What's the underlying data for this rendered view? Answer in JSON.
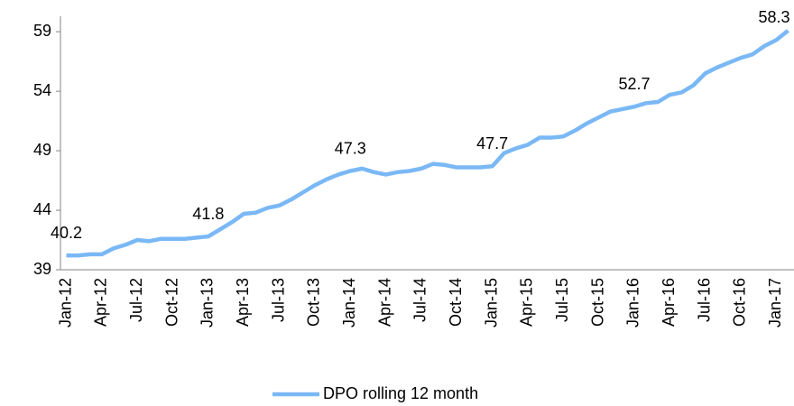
{
  "chart_data": {
    "type": "line",
    "categories": [
      "Jan-12",
      null,
      null,
      "Apr-12",
      null,
      null,
      "Jul-12",
      null,
      null,
      "Oct-12",
      null,
      null,
      "Jan-13",
      null,
      null,
      "Apr-13",
      null,
      null,
      "Jul-13",
      null,
      null,
      "Oct-13",
      null,
      null,
      "Jan-14",
      null,
      null,
      "Apr-14",
      null,
      null,
      "Jul-14",
      null,
      null,
      "Oct-14",
      null,
      null,
      "Jan-15",
      null,
      null,
      "Apr-15",
      null,
      null,
      "Jul-15",
      null,
      null,
      "Oct-15",
      null,
      null,
      "Jan-16",
      null,
      null,
      "Apr-16",
      null,
      null,
      "Jul-16",
      null,
      null,
      "Oct-16",
      null,
      null,
      "Jan-17",
      null
    ],
    "series": [
      {
        "name": "DPO rolling 12 month",
        "color": "#7ab8f5",
        "values": [
          40.2,
          40.2,
          40.3,
          40.3,
          40.8,
          41.1,
          41.5,
          41.4,
          41.6,
          41.6,
          41.6,
          41.7,
          41.8,
          42.4,
          43.0,
          43.7,
          43.8,
          44.2,
          44.4,
          44.9,
          45.5,
          46.1,
          46.6,
          47.0,
          47.3,
          47.5,
          47.2,
          47.0,
          47.2,
          47.3,
          47.5,
          47.9,
          47.8,
          47.6,
          47.6,
          47.6,
          47.7,
          48.8,
          49.2,
          49.5,
          50.1,
          50.1,
          50.2,
          50.7,
          51.3,
          51.8,
          52.3,
          52.5,
          52.7,
          53.0,
          53.1,
          53.7,
          53.9,
          54.5,
          55.5,
          56.0,
          56.4,
          56.8,
          57.1,
          57.8,
          58.3,
          59.1
        ],
        "value_labels": [
          "40.2",
          null,
          null,
          null,
          null,
          null,
          null,
          null,
          null,
          null,
          null,
          null,
          "41.8",
          null,
          null,
          null,
          null,
          null,
          null,
          null,
          null,
          null,
          null,
          null,
          "47.3",
          null,
          null,
          null,
          null,
          null,
          null,
          null,
          null,
          null,
          null,
          null,
          "47.7",
          null,
          null,
          null,
          null,
          null,
          null,
          null,
          null,
          null,
          null,
          null,
          "52.7",
          null,
          null,
          null,
          null,
          null,
          null,
          null,
          null,
          null,
          null,
          null,
          "58.3",
          null
        ]
      }
    ],
    "ylim": [
      39,
      60.3
    ],
    "yticks": [
      39,
      44,
      49,
      54,
      59
    ],
    "grid": false,
    "legend": "bottom"
  }
}
